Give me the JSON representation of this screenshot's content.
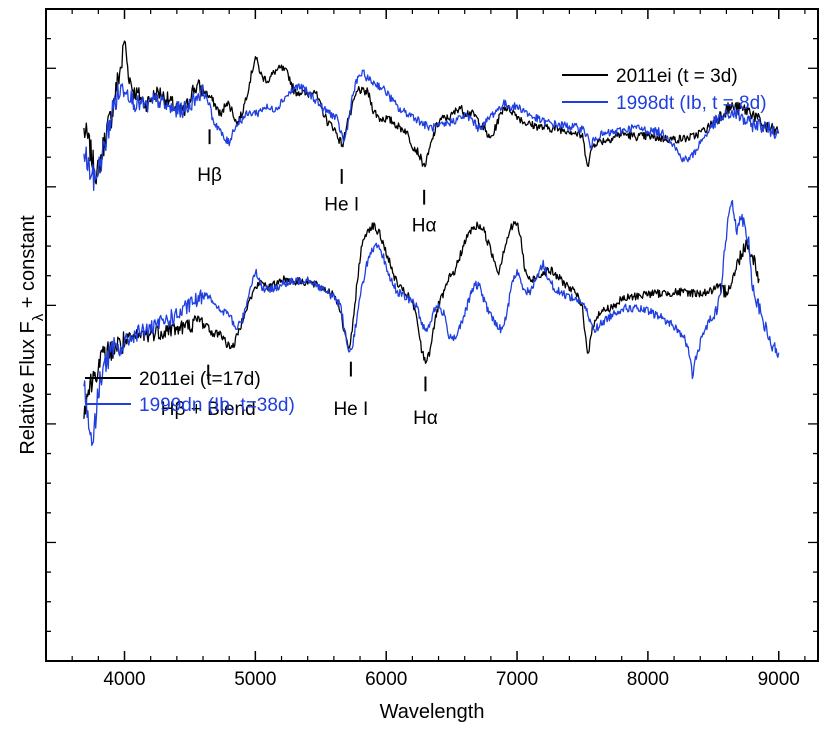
{
  "chart_data": {
    "type": "line",
    "xlabel": "Wavelength",
    "ylabel": "Relative Flux F",
    "ylabel_sub": "λ",
    "ylabel_suffix": " + constant",
    "xlim": [
      3400,
      9300
    ],
    "ylim": [
      0,
      11
    ],
    "x_ticks": [
      4000,
      5000,
      6000,
      7000,
      8000,
      9000
    ],
    "colors": {
      "black": "#000000",
      "blue": "#1f3fe0"
    },
    "panels": [
      {
        "name": "upper",
        "legend": [
          {
            "name": "2011ei (t = 3d)",
            "color": "#000000"
          },
          {
            "name": "1998dt (Ib, t = 8d)",
            "color": "#1f3fe0"
          }
        ],
        "series": [
          {
            "name": "2011ei (t = 3d)",
            "color": "#000000",
            "x": [
              3690,
              3720,
              3760,
              3790,
              3830,
              3870,
              3900,
              3940,
              3980,
              4000,
              4030,
              4070,
              4110,
              4160,
              4210,
              4260,
              4310,
              4360,
              4410,
              4460,
              4510,
              4560,
              4610,
              4660,
              4700,
              4740,
              4780,
              4820,
              4860,
              4900,
              4950,
              5000,
              5050,
              5100,
              5150,
              5200,
              5250,
              5300,
              5350,
              5400,
              5450,
              5500,
              5550,
              5600,
              5640,
              5670,
              5700,
              5730,
              5760,
              5790,
              5820,
              5860,
              5900,
              5950,
              6000,
              6050,
              6100,
              6150,
              6200,
              6240,
              6270,
              6290,
              6310,
              6340,
              6380,
              6420,
              6460,
              6500,
              6560,
              6600,
              6640,
              6680,
              6720,
              6760,
              6790,
              6820,
              6850,
              6900,
              6950,
              7000,
              7050,
              7100,
              7200,
              7300,
              7400,
              7500,
              7520,
              7545,
              7570,
              7600,
              7700,
              7800,
              7900,
              8000,
              8100,
              8200,
              8300,
              8350,
              8400,
              8450,
              8500,
              8550,
              8600,
              8650,
              8700,
              8750,
              8800,
              8850,
              8900,
              8950,
              9000
            ],
            "y": [
              8.95,
              8.8,
              8.4,
              8.2,
              8.6,
              9.0,
              9.2,
              9.7,
              10.1,
              10.5,
              9.9,
              9.6,
              9.55,
              9.4,
              9.5,
              9.6,
              9.5,
              9.4,
              9.3,
              9.25,
              9.6,
              9.7,
              9.6,
              9.5,
              9.35,
              9.2,
              9.45,
              9.3,
              9.05,
              9.25,
              9.7,
              10.2,
              9.85,
              9.8,
              9.95,
              10.0,
              9.9,
              9.6,
              9.6,
              9.55,
              9.65,
              9.35,
              9.1,
              9.0,
              8.8,
              8.7,
              9.1,
              9.25,
              9.5,
              9.65,
              9.6,
              9.6,
              9.3,
              9.15,
              9.15,
              9.1,
              9.0,
              8.95,
              8.7,
              8.6,
              8.45,
              8.35,
              8.45,
              8.7,
              9.0,
              9.15,
              9.15,
              9.2,
              9.35,
              9.25,
              9.25,
              9.2,
              9.05,
              8.95,
              8.8,
              8.9,
              9.1,
              9.35,
              9.3,
              9.2,
              9.1,
              9.05,
              9.0,
              8.98,
              8.95,
              8.85,
              8.6,
              8.35,
              8.65,
              8.75,
              8.8,
              8.9,
              8.85,
              8.85,
              8.82,
              8.8,
              8.82,
              8.85,
              8.92,
              8.98,
              9.1,
              9.2,
              9.3,
              9.35,
              9.3,
              9.3,
              9.25,
              9.1,
              9.0,
              8.95,
              8.92
            ]
          },
          {
            "name": "1998dt (Ib, t = 8d)",
            "color": "#1f3fe0",
            "x": [
              3690,
              3730,
              3770,
              3800,
              3840,
              3880,
              3920,
              3960,
              4000,
              4040,
              4080,
              4120,
              4170,
              4220,
              4270,
              4320,
              4370,
              4420,
              4470,
              4520,
              4560,
              4600,
              4640,
              4680,
              4720,
              4760,
              4800,
              4840,
              4880,
              4920,
              4970,
              5020,
              5070,
              5120,
              5170,
              5220,
              5270,
              5320,
              5370,
              5420,
              5470,
              5520,
              5570,
              5620,
              5650,
              5680,
              5710,
              5740,
              5770,
              5800,
              5830,
              5870,
              5910,
              5950,
              6000,
              6050,
              6100,
              6150,
              6200,
              6250,
              6290,
              6330,
              6370,
              6410,
              6450,
              6500,
              6550,
              6600,
              6650,
              6700,
              6750,
              6800,
              6850,
              6900,
              6950,
              7000,
              7050,
              7100,
              7200,
              7300,
              7400,
              7500,
              7540,
              7560,
              7600,
              7700,
              7800,
              7900,
              8000,
              8100,
              8150,
              8200,
              8250,
              8300,
              8350,
              8400,
              8450,
              8500,
              8550,
              8600,
              8650,
              8700,
              8750,
              8800,
              8850,
              8900,
              8950,
              9000
            ],
            "y": [
              8.6,
              8.3,
              8.1,
              8.3,
              8.6,
              9.0,
              9.4,
              9.6,
              9.7,
              9.55,
              9.4,
              9.4,
              9.35,
              9.45,
              9.45,
              9.35,
              9.3,
              9.3,
              9.3,
              9.45,
              9.55,
              9.6,
              9.45,
              9.1,
              9.0,
              8.8,
              8.75,
              9.0,
              9.1,
              9.2,
              9.25,
              9.25,
              9.35,
              9.3,
              9.35,
              9.5,
              9.6,
              9.7,
              9.65,
              9.55,
              9.45,
              9.3,
              9.25,
              9.15,
              8.95,
              8.75,
              9.1,
              9.5,
              9.75,
              9.9,
              9.9,
              9.8,
              9.75,
              9.7,
              9.6,
              9.45,
              9.3,
              9.25,
              9.2,
              9.12,
              9.05,
              9.0,
              9.0,
              9.02,
              9.05,
              9.1,
              9.15,
              9.2,
              9.15,
              9.0,
              9.05,
              9.2,
              9.3,
              9.4,
              9.35,
              9.35,
              9.3,
              9.2,
              9.1,
              9.05,
              9.02,
              8.98,
              8.85,
              8.65,
              8.85,
              8.9,
              8.95,
              9.0,
              8.95,
              8.92,
              8.85,
              8.7,
              8.5,
              8.45,
              8.55,
              8.75,
              8.9,
              9.05,
              9.15,
              9.2,
              9.25,
              9.2,
              9.1,
              9.05,
              9.05,
              9.0,
              8.95,
              8.9
            ]
          }
        ],
        "annotations": [
          {
            "text": "Hβ",
            "x": 4650,
            "tick_y": [
              8.72,
              8.97
            ],
            "text_y": 8.1
          },
          {
            "text": "He I",
            "x": 5660,
            "tick_y": [
              8.05,
              8.3
            ],
            "text_y": 7.6
          },
          {
            "text": "Hα",
            "x": 6290,
            "tick_y": [
              7.7,
              7.95
            ],
            "text_y": 7.25
          }
        ]
      },
      {
        "name": "lower",
        "legend": [
          {
            "name": "2011ei (t=17d)",
            "color": "#000000"
          },
          {
            "name": "1999dn (Ib, t=38d)",
            "color": "#1f3fe0"
          }
        ],
        "series": [
          {
            "name": "2011ei (t=17d)",
            "color": "#000000",
            "x": [
              3690,
              3730,
              3780,
              3830,
              3880,
              3930,
              3980,
              4030,
              4080,
              4130,
              4180,
              4230,
              4280,
              4330,
              4380,
              4430,
              4480,
              4530,
              4580,
              4630,
              4680,
              4730,
              4780,
              4830,
              4880,
              4920,
              4960,
              5000,
              5050,
              5100,
              5150,
              5200,
              5300,
              5400,
              5500,
              5550,
              5600,
              5640,
              5680,
              5700,
              5720,
              5740,
              5760,
              5780,
              5810,
              5840,
              5870,
              5900,
              5950,
              6000,
              6050,
              6100,
              6150,
              6200,
              6240,
              6270,
              6300,
              6330,
              6360,
              6400,
              6440,
              6480,
              6530,
              6580,
              6640,
              6700,
              6740,
              6780,
              6820,
              6860,
              6900,
              6950,
              7000,
              7030,
              7060,
              7100,
              7150,
              7200,
              7250,
              7300,
              7350,
              7400,
              7450,
              7500,
              7520,
              7545,
              7570,
              7600,
              7650,
              7700,
              7750,
              7800,
              7900,
              8000,
              8100,
              8200,
              8300,
              8400,
              8500,
              8600,
              8650,
              8700,
              8750,
              8800,
              8850
            ],
            "y": [
              4.3,
              4.6,
              4.9,
              5.1,
              5.2,
              5.3,
              5.35,
              5.4,
              5.45,
              5.5,
              5.5,
              5.55,
              5.55,
              5.6,
              5.6,
              5.62,
              5.65,
              5.7,
              5.75,
              5.65,
              5.5,
              5.55,
              5.35,
              5.3,
              5.6,
              5.9,
              6.1,
              6.3,
              6.4,
              6.3,
              6.35,
              6.45,
              6.4,
              6.4,
              6.3,
              6.25,
              6.2,
              6.0,
              5.55,
              5.35,
              5.3,
              5.55,
              6.0,
              6.45,
              6.95,
              7.2,
              7.3,
              7.35,
              7.2,
              6.9,
              6.55,
              6.3,
              6.2,
              6.05,
              5.7,
              5.25,
              5.05,
              5.2,
              5.6,
              6.0,
              6.2,
              6.45,
              6.6,
              6.95,
              7.25,
              7.35,
              7.3,
              7.05,
              6.8,
              6.55,
              6.95,
              7.3,
              7.4,
              7.1,
              6.6,
              6.4,
              6.5,
              6.55,
              6.6,
              6.5,
              6.4,
              6.3,
              6.2,
              5.95,
              5.55,
              5.15,
              5.55,
              5.8,
              5.9,
              5.95,
              6.0,
              6.1,
              6.15,
              6.2,
              6.2,
              6.22,
              6.22,
              6.2,
              6.25,
              6.25,
              6.45,
              6.8,
              7.05,
              6.85,
              6.45
            ]
          },
          {
            "name": "1999dn (Ib, t=38d)",
            "color": "#1f3fe0",
            "x": [
              3690,
              3720,
              3750,
              3780,
              3800,
              3830,
              3870,
              3920,
              3970,
              4020,
              4070,
              4120,
              4170,
              4220,
              4270,
              4320,
              4370,
              4420,
              4470,
              4520,
              4570,
              4620,
              4660,
              4700,
              4750,
              4800,
              4850,
              4900,
              4950,
              5000,
              5050,
              5100,
              5150,
              5200,
              5300,
              5400,
              5500,
              5550,
              5600,
              5650,
              5690,
              5720,
              5740,
              5770,
              5810,
              5850,
              5890,
              5930,
              5980,
              6030,
              6080,
              6130,
              6180,
              6230,
              6270,
              6300,
              6330,
              6360,
              6400,
              6440,
              6480,
              6520,
              6560,
              6600,
              6640,
              6680,
              6720,
              6760,
              6800,
              6840,
              6880,
              6920,
              6960,
              7000,
              7050,
              7100,
              7150,
              7200,
              7250,
              7300,
              7400,
              7500,
              7540,
              7570,
              7600,
              7700,
              7800,
              7900,
              8000,
              8100,
              8200,
              8280,
              8320,
              8340,
              8370,
              8420,
              8470,
              8520,
              8560,
              8600,
              8640,
              8680,
              8720,
              8770,
              8800,
              8850,
              8900,
              8950,
              9000
            ],
            "y": [
              4.7,
              4.1,
              3.7,
              4.05,
              4.6,
              4.9,
              5.1,
              5.25,
              5.3,
              5.4,
              5.5,
              5.55,
              5.6,
              5.6,
              5.7,
              5.75,
              5.8,
              5.85,
              5.95,
              6.05,
              6.1,
              6.2,
              6.15,
              5.95,
              5.9,
              5.85,
              5.6,
              5.75,
              6.2,
              6.6,
              6.3,
              6.25,
              6.3,
              6.35,
              6.4,
              6.45,
              6.3,
              6.2,
              6.15,
              6.0,
              5.5,
              5.2,
              5.3,
              5.7,
              6.25,
              6.7,
              6.9,
              7.0,
              6.8,
              6.45,
              6.25,
              6.15,
              6.1,
              6.0,
              5.7,
              5.6,
              5.65,
              5.9,
              6.0,
              5.85,
              5.5,
              5.45,
              5.6,
              5.85,
              6.15,
              6.35,
              6.3,
              6.0,
              5.85,
              5.65,
              5.6,
              5.8,
              6.4,
              6.55,
              6.3,
              6.2,
              6.5,
              6.7,
              6.4,
              6.25,
              6.15,
              6.05,
              5.85,
              5.65,
              5.6,
              5.8,
              5.95,
              5.95,
              5.9,
              5.8,
              5.65,
              5.45,
              5.15,
              4.8,
              5.15,
              5.5,
              5.75,
              5.9,
              6.3,
              7.2,
              7.8,
              7.3,
              7.5,
              7.1,
              6.3,
              5.95,
              5.6,
              5.3,
              5.2
            ]
          }
        ],
        "annotations": [
          {
            "text": "Hβ + Blend",
            "x": 4640,
            "tick_y": [
              4.75,
              5.0
            ],
            "text_y": 4.15
          },
          {
            "text": "He I",
            "x": 5730,
            "tick_y": [
              4.8,
              5.05
            ],
            "text_y": 4.15
          },
          {
            "text": "Hα",
            "x": 6300,
            "tick_y": [
              4.55,
              4.8
            ],
            "text_y": 4.0
          }
        ]
      }
    ]
  }
}
